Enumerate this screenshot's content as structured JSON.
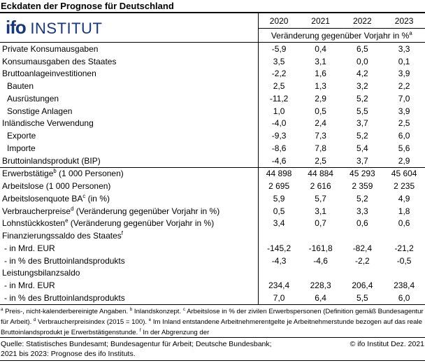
{
  "page": {
    "title": "Eckdaten der Prognose für Deutschland"
  },
  "logo": {
    "brand": "ifo",
    "name": "INSTITUT",
    "color": "#17377e"
  },
  "table": {
    "years": [
      "2020",
      "2021",
      "2022",
      "2023"
    ],
    "subtitle": "Veränderung gegenüber Vorjahr in %",
    "subtitle_sup": "a",
    "rows": [
      {
        "label": "Private Konsumausgaben",
        "values": [
          "-5,9",
          "0,4",
          "6,5",
          "3,3"
        ]
      },
      {
        "label": "Konsumausgaben des Staates",
        "values": [
          "3,5",
          "3,1",
          "0,0",
          "0,1"
        ]
      },
      {
        "label": "Bruttoanlageinvestitionen",
        "values": [
          "-2,2",
          "1,6",
          "4,2",
          "3,9"
        ]
      },
      {
        "label": "Bauten",
        "indent": true,
        "values": [
          "2,5",
          "1,3",
          "3,2",
          "2,2"
        ]
      },
      {
        "label": "Ausrüstungen",
        "indent": true,
        "values": [
          "-11,2",
          "2,9",
          "5,2",
          "7,0"
        ]
      },
      {
        "label": "Sonstige Anlagen",
        "indent": true,
        "values": [
          "1,0",
          "0,5",
          "5,5",
          "3,9"
        ]
      },
      {
        "label": "Inländische Verwendung",
        "values": [
          "-4,0",
          "2,4",
          "3,7",
          "2,5"
        ]
      },
      {
        "label": "Exporte",
        "indent": true,
        "values": [
          "-9,3",
          "7,3",
          "5,2",
          "6,0"
        ]
      },
      {
        "label": "Importe",
        "indent": true,
        "values": [
          "-8,6",
          "7,8",
          "5,4",
          "5,6"
        ]
      },
      {
        "label": "Bruttoinlandsprodukt (BIP)",
        "values": [
          "-4,6",
          "2,5",
          "3,7",
          "2,9"
        ]
      },
      {
        "label": "Erwerbstätige",
        "sup": "b",
        "rest": " (1 000 Personen)",
        "separator_above": true,
        "values": [
          "44 898",
          "44 884",
          "45 293",
          "45 604"
        ]
      },
      {
        "label": "Arbeitslose (1 000 Personen)",
        "values": [
          "2 695",
          "2 616",
          "2 359",
          "2 235"
        ]
      },
      {
        "label": "Arbeitslosenquote BA",
        "sup": "c",
        "rest": " (in %)",
        "values": [
          "5,9",
          "5,7",
          "5,2",
          "4,9"
        ]
      },
      {
        "label": "Verbraucherpreise",
        "sup": "d",
        "rest": " (Veränderung gegenüber Vorjahr in %)",
        "values": [
          "0,5",
          "3,1",
          "3,3",
          "1,8"
        ]
      },
      {
        "label": "Lohnstückkosten",
        "sup": "e",
        "rest": " (Veränderung gegenüber Vorjahr in %)",
        "values": [
          "3,4",
          "0,7",
          "0,6",
          "0,6"
        ]
      },
      {
        "label": "Finanzierungssaldo des Staates",
        "sup": "f",
        "values": [
          "",
          "",
          "",
          ""
        ]
      },
      {
        "label": "- in Mrd. EUR",
        "dash": true,
        "values": [
          "-145,2",
          "-161,8",
          "-82,4",
          "-21,2"
        ]
      },
      {
        "label": "- in % des Bruttoinlandsprodukts",
        "dash": true,
        "values": [
          "-4,3",
          "-4,6",
          "-2,2",
          "-0,5"
        ]
      },
      {
        "label": "Leistungsbilanzsaldo",
        "values": [
          "",
          "",
          "",
          ""
        ]
      },
      {
        "label": "- in Mrd. EUR",
        "dash": true,
        "values": [
          "234,4",
          "228,3",
          "206,4",
          "238,4"
        ]
      },
      {
        "label": "- in % des Bruttoinlandsprodukts",
        "dash": true,
        "values": [
          "7,0",
          "6,4",
          "5,5",
          "6,0"
        ]
      }
    ]
  },
  "footnotes": [
    {
      "sup": "a",
      "text": " Preis-, nicht-kalenderbereinigte Angaben. "
    },
    {
      "sup": "b",
      "text": " Inlandskonzept. "
    },
    {
      "sup": "c",
      "text": " Arbeitslose in % der zivilen Erwerbspersonen (Definition gemäß Bundesagentur für Arbeit). "
    },
    {
      "sup": "d",
      "text": " Verbraucherpreisindex (2015 = 100). "
    },
    {
      "sup": "e",
      "text": " Im Inland entstandene Arbeitnehmerentgelte je Arbeitnehmerstunde bezogen auf das reale Bruttoinlandsprodukt je Erwerbstätigenstunde. "
    },
    {
      "sup": "f",
      "text": " In der Abgrenzung der"
    }
  ],
  "source": {
    "line1": "Quelle: Statistisches Bundesamt; Bundesagentur für Arbeit; Deutsche Bundesbank;",
    "copyright": "© ifo Institut Dez. 2021",
    "line2": "2021 bis 2023: Prognose des ifo Instituts."
  }
}
